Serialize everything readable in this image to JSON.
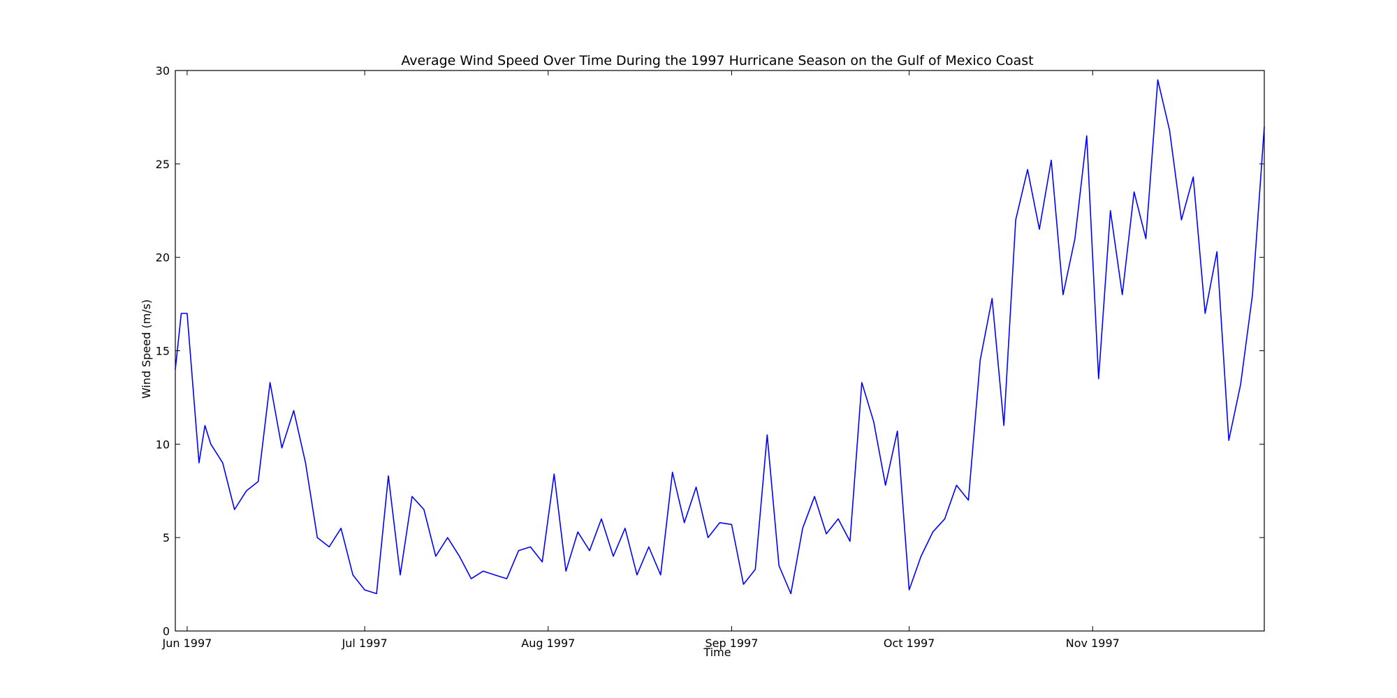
{
  "chart_data": {
    "type": "line",
    "title": "Average Wind Speed Over Time During the 1997 Hurricane Season on the Gulf of Mexico Coast",
    "xlabel": "Time",
    "ylabel": "Wind Speed (m/s)",
    "ylim": [
      0,
      30
    ],
    "xlim": [
      "1997-05-30",
      "1997-11-30"
    ],
    "grid": false,
    "line_color": "#0000ff",
    "x_ticks": [
      {
        "label": "Jun 1997",
        "date": "1997-06-01"
      },
      {
        "label": "Jul 1997",
        "date": "1997-07-01"
      },
      {
        "label": "Aug 1997",
        "date": "1997-08-01"
      },
      {
        "label": "Sep 1997",
        "date": "1997-09-01"
      },
      {
        "label": "Oct 1997",
        "date": "1997-10-01"
      },
      {
        "label": "Nov 1997",
        "date": "1997-11-01"
      }
    ],
    "y_ticks": [
      {
        "label": "0",
        "value": 0
      },
      {
        "label": "5",
        "value": 5
      },
      {
        "label": "10",
        "value": 10
      },
      {
        "label": "15",
        "value": 15
      },
      {
        "label": "20",
        "value": 20
      },
      {
        "label": "25",
        "value": 25
      },
      {
        "label": "30",
        "value": 30
      }
    ],
    "series": [
      {
        "x": [
          "1997-05-30",
          "1997-05-31",
          "1997-06-01",
          "1997-06-02",
          "1997-06-03",
          "1997-06-04",
          "1997-06-05",
          "1997-06-07",
          "1997-06-09",
          "1997-06-11",
          "1997-06-13",
          "1997-06-15",
          "1997-06-17",
          "1997-06-19",
          "1997-06-21",
          "1997-06-23",
          "1997-06-25",
          "1997-06-27",
          "1997-06-29",
          "1997-07-01",
          "1997-07-03",
          "1997-07-05",
          "1997-07-07",
          "1997-07-09",
          "1997-07-11",
          "1997-07-13",
          "1997-07-15",
          "1997-07-17",
          "1997-07-19",
          "1997-07-21",
          "1997-07-23",
          "1997-07-25",
          "1997-07-27",
          "1997-07-29",
          "1997-07-31",
          "1997-08-02",
          "1997-08-04",
          "1997-08-06",
          "1997-08-08",
          "1997-08-10",
          "1997-08-12",
          "1997-08-14",
          "1997-08-16",
          "1997-08-18",
          "1997-08-20",
          "1997-08-22",
          "1997-08-24",
          "1997-08-26",
          "1997-08-28",
          "1997-08-30",
          "1997-09-01",
          "1997-09-03",
          "1997-09-05",
          "1997-09-07",
          "1997-09-09",
          "1997-09-11",
          "1997-09-13",
          "1997-09-15",
          "1997-09-17",
          "1997-09-19",
          "1997-09-21",
          "1997-09-23",
          "1997-09-25",
          "1997-09-27",
          "1997-09-29",
          "1997-10-01",
          "1997-10-03",
          "1997-10-05",
          "1997-10-07",
          "1997-10-09",
          "1997-10-11",
          "1997-10-13",
          "1997-10-15",
          "1997-10-17",
          "1997-10-19",
          "1997-10-21",
          "1997-10-23",
          "1997-10-25",
          "1997-10-27",
          "1997-10-29",
          "1997-10-31",
          "1997-11-02",
          "1997-11-04",
          "1997-11-06",
          "1997-11-08",
          "1997-11-10",
          "1997-11-12",
          "1997-11-14",
          "1997-11-16",
          "1997-11-18",
          "1997-11-20",
          "1997-11-22",
          "1997-11-24",
          "1997-11-26",
          "1997-11-28",
          "1997-11-30"
        ],
        "y": [
          14.0,
          17.0,
          17.0,
          13.0,
          9.0,
          11.0,
          10.0,
          9.0,
          6.5,
          7.5,
          8.0,
          13.3,
          9.8,
          11.8,
          9.0,
          5.0,
          4.5,
          5.5,
          3.0,
          2.2,
          2.0,
          8.3,
          3.0,
          7.2,
          6.5,
          4.0,
          5.0,
          4.0,
          2.8,
          3.2,
          3.0,
          2.8,
          4.3,
          4.5,
          3.7,
          8.4,
          3.2,
          5.3,
          4.3,
          6.0,
          4.0,
          5.5,
          3.0,
          4.5,
          3.0,
          8.5,
          5.8,
          7.7,
          5.0,
          5.8,
          5.7,
          2.5,
          3.3,
          10.5,
          3.5,
          2.0,
          5.5,
          7.2,
          5.2,
          6.0,
          4.8,
          13.3,
          11.2,
          7.8,
          10.7,
          2.2,
          4.0,
          5.3,
          6.0,
          7.8,
          7.0,
          14.5,
          17.8,
          11.0,
          22.0,
          24.7,
          21.5,
          25.2,
          18.0,
          21.0,
          26.5,
          13.5,
          22.5,
          18.0,
          23.5,
          21.0,
          29.5,
          26.8,
          22.0,
          24.3,
          17.0,
          20.3,
          10.2,
          13.2,
          18.0,
          27.0
        ]
      }
    ]
  }
}
